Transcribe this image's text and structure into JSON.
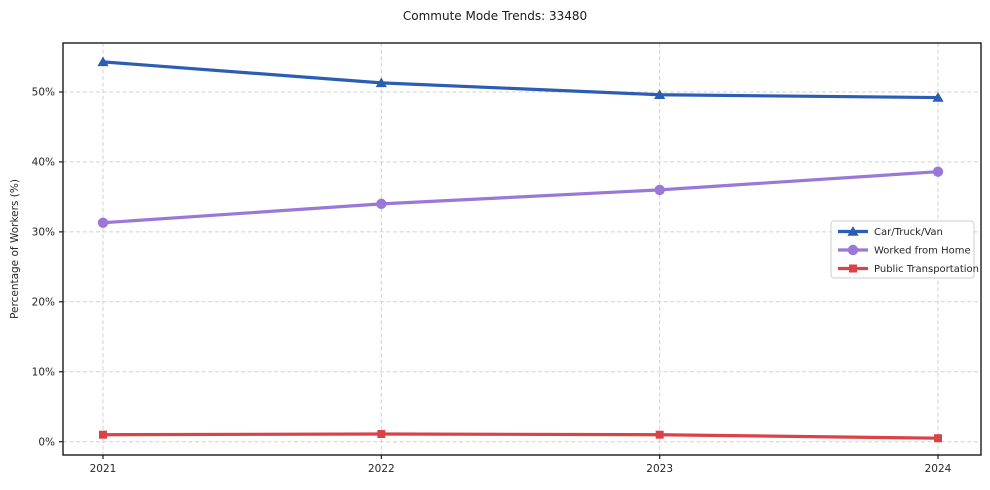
{
  "chart_data": {
    "type": "line",
    "title": "Commute Mode Trends: 33480",
    "xlabel": "",
    "ylabel": "Percentage of Workers (%)",
    "x": [
      "2021",
      "2022",
      "2023",
      "2024"
    ],
    "series": [
      {
        "name": "Car/Truck/Van",
        "values": [
          54.3,
          51.3,
          49.6,
          49.2
        ],
        "color": "#2b5db5",
        "marker": "triangle"
      },
      {
        "name": "Worked from Home",
        "values": [
          31.3,
          34.0,
          36.0,
          38.6
        ],
        "color": "#9a78d8",
        "marker": "circle"
      },
      {
        "name": "Public Transportation",
        "values": [
          1.0,
          1.1,
          1.0,
          0.5
        ],
        "color": "#d94246",
        "marker": "square"
      }
    ],
    "yticks": [
      0,
      10,
      20,
      30,
      40,
      50
    ],
    "ytick_labels": [
      "0%",
      "10%",
      "20%",
      "30%",
      "40%",
      "50%"
    ],
    "ylim": [
      -1.9,
      57.0
    ],
    "grid": true,
    "grid_style": "dashed",
    "legend_position": "center-right",
    "legend_entries": [
      "Car/Truck/Van",
      "Worked from Home",
      "Public Transportation"
    ]
  },
  "colors": {
    "background": "#ffffff",
    "grid": "#cccccc",
    "axis": "#1a1a1a",
    "text": "#262626",
    "series_blue": "#2b5db5",
    "series_purple": "#9a78d8",
    "series_red": "#d94246"
  }
}
